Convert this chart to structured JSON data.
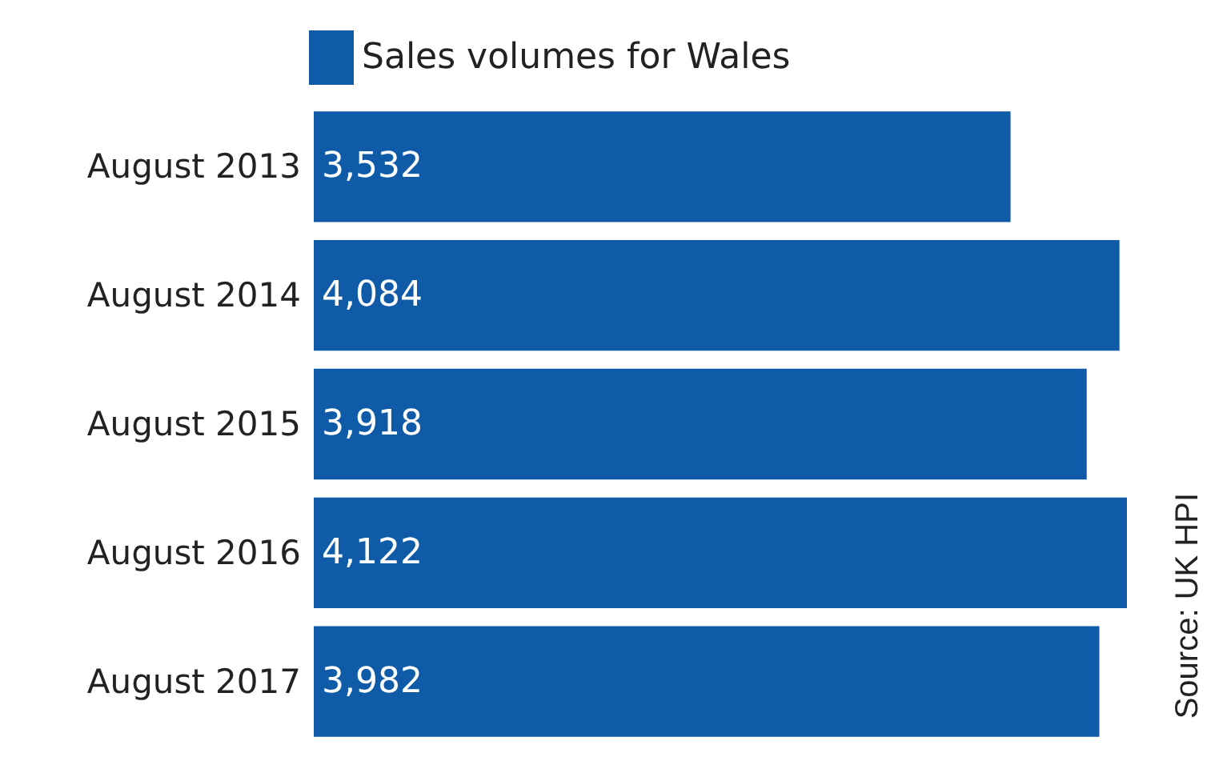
{
  "chart_data": {
    "type": "bar",
    "orientation": "horizontal",
    "categories": [
      "August 2013",
      "August 2014",
      "August 2015",
      "August 2016",
      "August 2017"
    ],
    "series": [
      {
        "name": "Sales volumes for Wales",
        "color": "#0f5ba7",
        "values": [
          3532,
          4084,
          3918,
          4122,
          3982
        ],
        "value_labels": [
          "3,532",
          "4,084",
          "3,918",
          "4,122",
          "3,982"
        ]
      }
    ],
    "legend": "top",
    "annotations": [
      "Source: UK HPI"
    ]
  }
}
